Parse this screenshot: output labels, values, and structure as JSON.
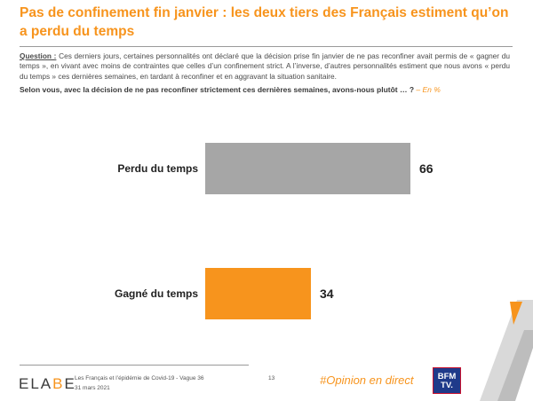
{
  "header": {
    "title": "Pas de confinement fin janvier : les deux tiers des Français estiment qu’on a perdu du temps"
  },
  "question": {
    "label": "Question :",
    "text": "Ces derniers jours, certaines personnalités ont déclaré que la décision prise fin janvier de ne pas reconfiner avait permis de « gagner du temps », en vivant avec moins de contraintes que celles d’un confinement strict. A l’inverse, d’autres personnalités estiment que nous avons « perdu du temps » ces dernières semaines, en tardant à reconfiner et en aggravant la situation sanitaire.",
    "prompt": "Selon vous, avec la décision de ne pas reconfiner strictement ces dernières semaines, avons-nous plutôt … ?",
    "unit_note": "– En %"
  },
  "chart_data": {
    "type": "bar",
    "orientation": "horizontal",
    "categories": [
      "Perdu du temps",
      "Gagné du temps"
    ],
    "values": [
      66,
      34
    ],
    "colors": [
      "#a6a6a6",
      "#f7941d"
    ],
    "value_labels": [
      "66",
      "34"
    ],
    "xlim": [
      0,
      100
    ],
    "title": "",
    "xlabel": "",
    "ylabel": "",
    "grid": false
  },
  "footer": {
    "logo_left": "ELA",
    "logo_accent": "B",
    "logo_right": "E",
    "study": "Les Français et l’épidémie de Covid-19 - Vague 36",
    "date": "31 mars 2021",
    "page_number": "13",
    "hashtag": "#Opinion en direct",
    "tv_logo_line1": "BFM",
    "tv_logo_line2": "TV."
  },
  "colors": {
    "accent": "#f7941d",
    "grey_bar": "#a6a6a6",
    "text": "#3a3a3a"
  }
}
